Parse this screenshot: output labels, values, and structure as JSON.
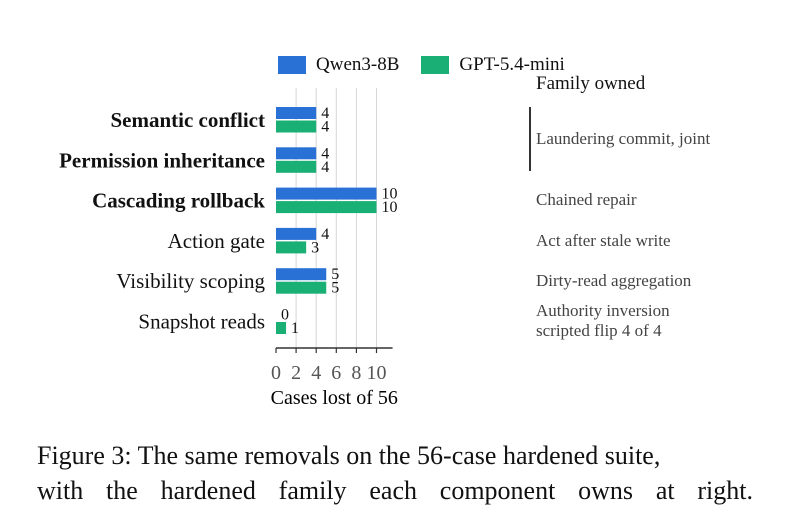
{
  "chart_data": {
    "type": "bar",
    "orientation": "horizontal",
    "categories": [
      "Semantic conflict",
      "Permission inheritance",
      "Cascading rollback",
      "Action gate",
      "Visibility scoping",
      "Snapshot reads"
    ],
    "bold_categories": [
      "Semantic conflict",
      "Permission inheritance",
      "Cascading rollback"
    ],
    "series": [
      {
        "name": "Qwen3-8B",
        "color": "#2a71d6",
        "values": [
          4,
          4,
          10,
          4,
          5,
          0
        ]
      },
      {
        "name": "GPT-5.4-mini",
        "color": "#1aaf74",
        "values": [
          4,
          4,
          10,
          3,
          5,
          1
        ]
      }
    ],
    "xlabel": "Cases lost of 56",
    "ylabel": "",
    "xlim": [
      0,
      11.6
    ],
    "xticks": [
      0,
      2,
      4,
      6,
      8,
      10
    ],
    "grid": "vertical",
    "legend": "top",
    "data_labels": true
  },
  "family": {
    "header": "Family owned",
    "labels": [
      "Laundering commit, joint",
      "Chained repair",
      "Act after stale write",
      "Dirty-read aggregation",
      "Authority inversion",
      "scripted flip 4 of 4"
    ]
  },
  "caption": {
    "line1": "Figure 3: The same removals on the 56-case hardened suite,",
    "line2": "with the hardened family each component owns at right."
  }
}
